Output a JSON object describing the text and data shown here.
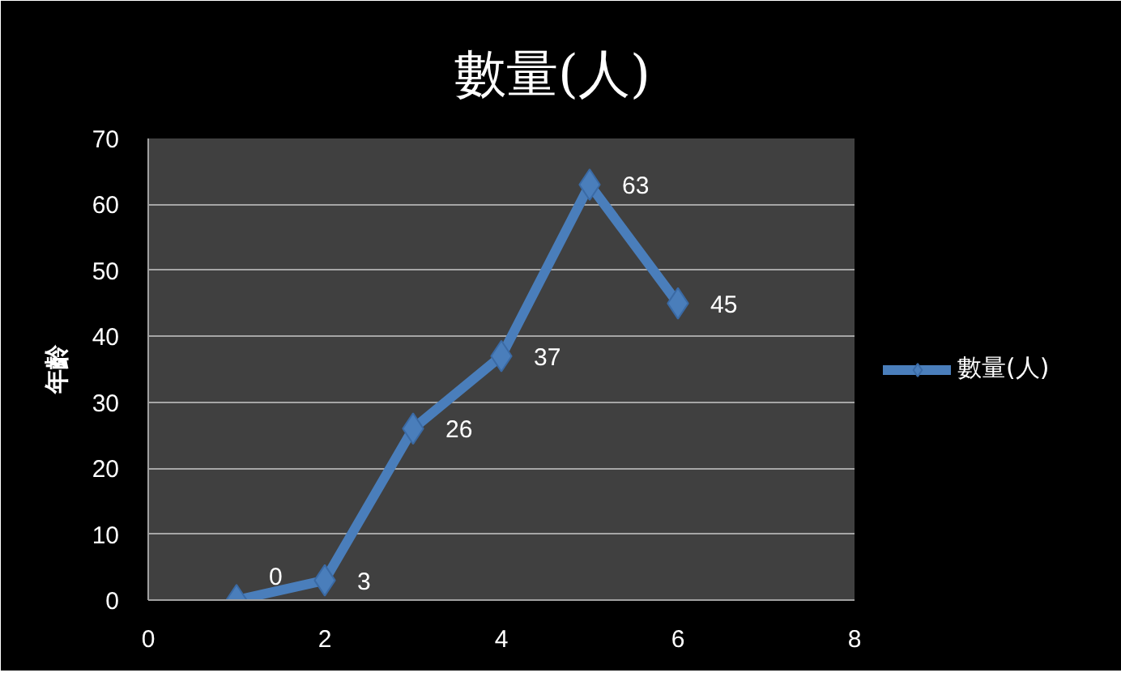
{
  "chart_data": {
    "type": "line",
    "title": "數量(人)",
    "ylabel": "年齡",
    "x": [
      1,
      2,
      3,
      4,
      5,
      6
    ],
    "series": [
      {
        "name": "數量(人)",
        "color": "#4a7ebb",
        "values": [
          0,
          3,
          26,
          37,
          63,
          45
        ]
      }
    ],
    "xlim": [
      0,
      8
    ],
    "xticks": [
      0,
      2,
      4,
      6,
      8
    ],
    "ylim": [
      0,
      70
    ],
    "yticks": [
      0,
      10,
      20,
      30,
      40,
      50,
      60,
      70
    ],
    "grid": "y",
    "legend": "right",
    "marker": "diamond",
    "line_style": "solid",
    "data_labels": true
  }
}
